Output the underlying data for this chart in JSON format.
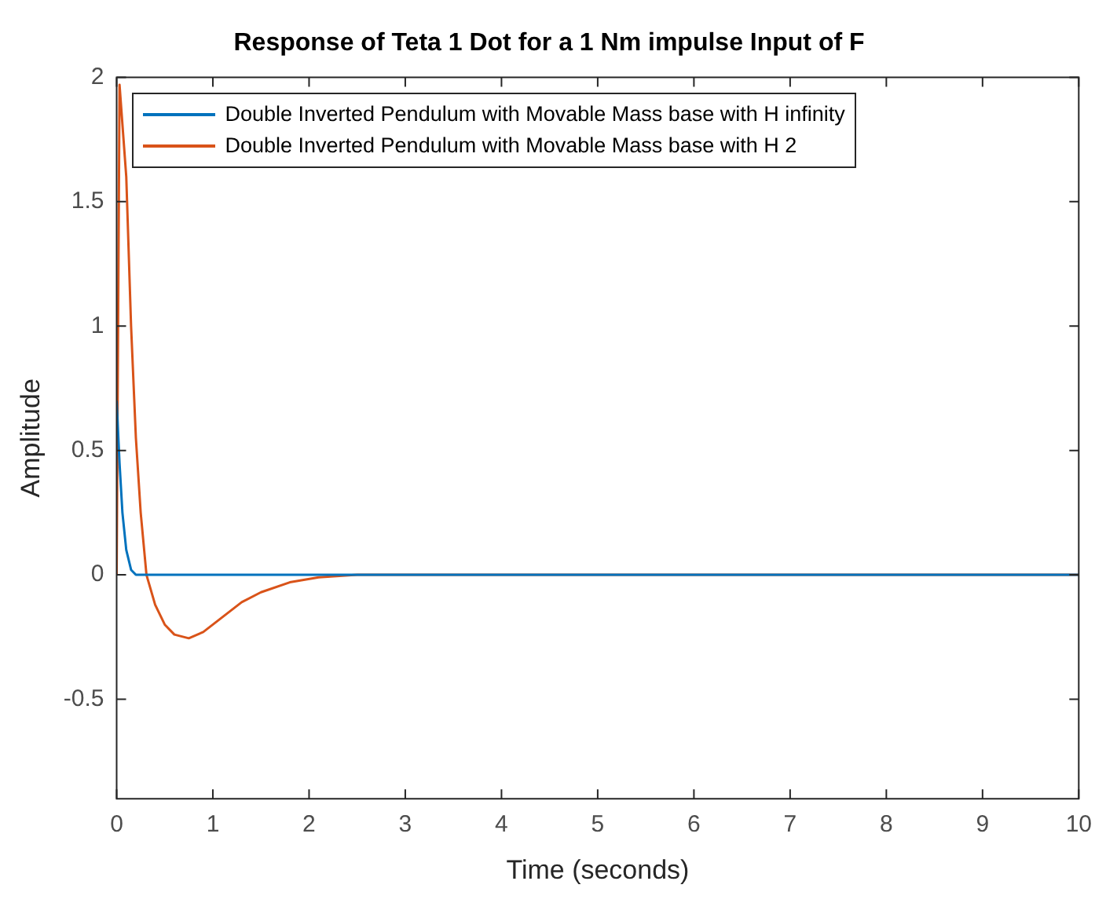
{
  "chart_data": {
    "type": "line",
    "title": "Response of Teta 1 Dot for a 1 Nm impulse Input of F",
    "xlabel": "Time (seconds)",
    "ylabel": "Amplitude",
    "xlim": [
      0,
      10
    ],
    "xticks": [
      0,
      1,
      2,
      3,
      4,
      5,
      6,
      7,
      8,
      9,
      10
    ],
    "ylim": [
      -0.9,
      2
    ],
    "yticks": [
      -0.5,
      0,
      0.5,
      1,
      1.5,
      2
    ],
    "grid": false,
    "legend": "top left",
    "marker": "none",
    "line_style": "solid",
    "series": [
      {
        "name": "Double Inverted Pendulum with Movable Mass base with H infinity",
        "color": "#0072bd",
        "x": [
          0,
          0.03,
          0.06,
          0.1,
          0.15,
          0.2,
          0.3,
          10
        ],
        "values": [
          0.7,
          0.45,
          0.25,
          0.1,
          0.02,
          0,
          0,
          0
        ]
      },
      {
        "name": "Double Inverted Pendulum with Movable Mass base with H 2",
        "color": "#d95319",
        "x": [
          0,
          0.03,
          0.1,
          0.15,
          0.2,
          0.25,
          0.31,
          0.4,
          0.5,
          0.6,
          0.75,
          0.9,
          1.1,
          1.3,
          1.5,
          1.8,
          2.1,
          2.5,
          10
        ],
        "values": [
          0,
          1.97,
          1.6,
          1.0,
          0.55,
          0.25,
          0,
          -0.12,
          -0.2,
          -0.24,
          -0.255,
          -0.23,
          -0.17,
          -0.11,
          -0.07,
          -0.03,
          -0.01,
          0,
          0
        ]
      }
    ]
  }
}
